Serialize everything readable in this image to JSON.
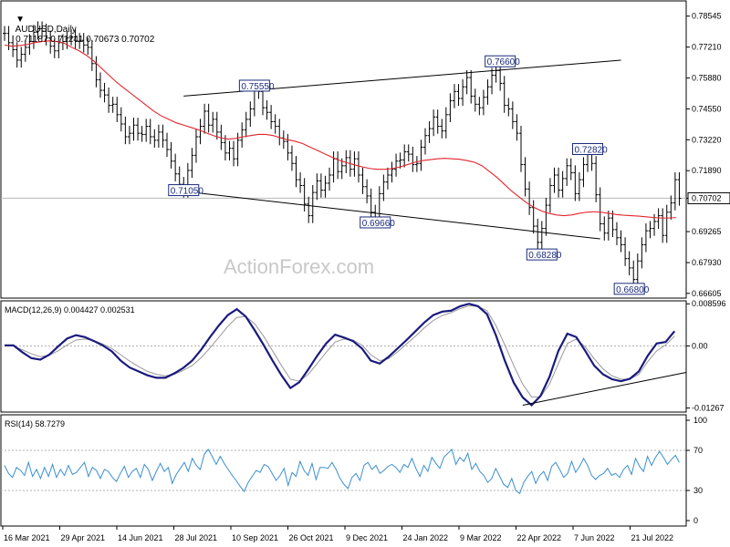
{
  "header": {
    "symbol": "AUDUSD,Daily",
    "ohlc": "0.71187 0.71241 0.70673 0.70702",
    "menu_icon": "triangle-down-icon"
  },
  "watermark": "ActionForex.com",
  "colors": {
    "price": "#000000",
    "ma": "#e3242b",
    "macd": "#1a1a7e",
    "signal": "#999999",
    "rsi": "#3a8fd0",
    "trend": "#000000",
    "label": "#1a2a7a"
  },
  "chart_data": [
    {
      "type": "candlestick",
      "title": "AUDUSD,Daily",
      "y_ticks": [
        "0.78545",
        "0.77210",
        "0.75880",
        "0.74550",
        "0.73220",
        "0.71890",
        "0.70702",
        "0.69265",
        "0.67930",
        "0.66605"
      ],
      "ylim": [
        0.664,
        0.792
      ],
      "current_price": "0.70702",
      "x_labels": [
        "16 Mar 2021",
        "29 Apr 2021",
        "14 Jun 2021",
        "28 Jul 2021",
        "10 Sep 2021",
        "26 Oct 2021",
        "9 Dec 2021",
        "24 Jan 2022",
        "9 Mar 2022",
        "22 Apr 2022",
        "7 Jun 2022",
        "21 Jul 2022"
      ],
      "price_labels": [
        {
          "text": "0.71050",
          "date_index": 43,
          "value": 0.7105
        },
        {
          "text": "0.75550",
          "date_index": 60,
          "value": 0.7555
        },
        {
          "text": "0.69660",
          "date_index": 89,
          "value": 0.6966
        },
        {
          "text": "0.76600",
          "date_index": 119,
          "value": 0.766
        },
        {
          "text": "0.72820",
          "date_index": 140,
          "value": 0.7282
        },
        {
          "text": "0.68280",
          "date_index": 129,
          "value": 0.6828
        },
        {
          "text": "0.66800",
          "date_index": 150,
          "value": 0.668
        }
      ],
      "series": [
        {
          "name": "price",
          "close": [
            0.778,
            0.774,
            0.771,
            0.7665,
            0.769,
            0.772,
            0.7745,
            0.7785,
            0.78,
            0.779,
            0.776,
            0.7725,
            0.7705,
            0.774,
            0.7745,
            0.776,
            0.7765,
            0.7745,
            0.775,
            0.773,
            0.772,
            0.765,
            0.758,
            0.7535,
            0.7515,
            0.747,
            0.7475,
            0.743,
            0.739,
            0.7335,
            0.735,
            0.7385,
            0.735,
            0.7345,
            0.738,
            0.7335,
            0.732,
            0.7355,
            0.732,
            0.728,
            0.723,
            0.7175,
            0.713,
            0.7105,
            0.719,
            0.7255,
            0.7335,
            0.738,
            0.7445,
            0.7385,
            0.741,
            0.7355,
            0.731,
            0.7265,
            0.7285,
            0.724,
            0.732,
            0.7365,
            0.741,
            0.7455,
            0.754,
            0.753,
            0.746,
            0.744,
            0.74,
            0.738,
            0.733,
            0.7315,
            0.7265,
            0.722,
            0.715,
            0.7125,
            0.7045,
            0.6995,
            0.7095,
            0.7145,
            0.7105,
            0.7135,
            0.717,
            0.724,
            0.7185,
            0.721,
            0.7245,
            0.7195,
            0.724,
            0.717,
            0.712,
            0.708,
            0.701,
            0.698,
            0.709,
            0.714,
            0.717,
            0.7195,
            0.723,
            0.7235,
            0.727,
            0.726,
            0.7215,
            0.722,
            0.729,
            0.734,
            0.737,
            0.742,
            0.738,
            0.736,
            0.743,
            0.749,
            0.753,
            0.75,
            0.755,
            0.759,
            0.751,
            0.7475,
            0.746,
            0.7505,
            0.755,
            0.76,
            0.762,
            0.7565,
            0.747,
            0.7455,
            0.74,
            0.735,
            0.7215,
            0.711,
            0.703,
            0.695,
            0.688,
            0.694,
            0.704,
            0.7125,
            0.717,
            0.7105,
            0.7155,
            0.721,
            0.718,
            0.709,
            0.715,
            0.7215,
            0.726,
            0.722,
            0.7085,
            0.696,
            0.692,
            0.6985,
            0.6935,
            0.69,
            0.687,
            0.681,
            0.677,
            0.672,
            0.68,
            0.687,
            0.693,
            0.694,
            0.697,
            0.6995,
            0.691,
            0.701,
            0.705,
            0.715,
            0.707
          ]
        },
        {
          "name": "MA",
          "values": [
            0.773,
            0.7725,
            0.7728,
            0.7732,
            0.774,
            0.7745,
            0.7748,
            0.7745,
            0.7738,
            0.772,
            0.7705,
            0.7685,
            0.766,
            0.763,
            0.76,
            0.757,
            0.7545,
            0.752,
            0.7495,
            0.747,
            0.7445,
            0.7425,
            0.741,
            0.7395,
            0.7385,
            0.7375,
            0.7365,
            0.7352,
            0.734,
            0.733,
            0.7325,
            0.7328,
            0.7335,
            0.734,
            0.7345,
            0.7345,
            0.734,
            0.733,
            0.7322,
            0.7315,
            0.7305,
            0.729,
            0.7275,
            0.726,
            0.7245,
            0.7232,
            0.7222,
            0.7213,
            0.7205,
            0.7198,
            0.7195,
            0.7195,
            0.7198,
            0.7205,
            0.7215,
            0.7225,
            0.7232,
            0.7236,
            0.724,
            0.7242,
            0.724,
            0.7238,
            0.7232,
            0.7225,
            0.721,
            0.7185,
            0.716,
            0.713,
            0.71,
            0.7075,
            0.705,
            0.703,
            0.7015,
            0.7005,
            0.6998,
            0.6995,
            0.6998,
            0.7005,
            0.701,
            0.7012,
            0.701,
            0.7005,
            0.7,
            0.6997,
            0.6995,
            0.6993,
            0.699,
            0.6987,
            0.6985,
            0.6985,
            0.6987
          ]
        }
      ],
      "trendlines": [
        {
          "name": "upper-channel",
          "points": [
            [
              43,
              0.751
            ],
            [
              148,
              0.7665
            ]
          ]
        },
        {
          "name": "lower-channel",
          "points": [
            [
              43,
              0.71
            ],
            [
              143,
              0.6895
            ]
          ]
        }
      ]
    },
    {
      "type": "line",
      "title": "MACD(12,26,9) 0.004427 0.002531",
      "y_ticks": [
        "0.008596",
        "0.00",
        "-0.01267"
      ],
      "ylim": [
        -0.0135,
        0.0092
      ],
      "series": [
        {
          "name": "macd",
          "values": [
            0.0001,
            0.0001,
            -0.0013,
            -0.0025,
            -0.0028,
            -0.0018,
            -0.0001,
            0.0015,
            0.0022,
            0.0018,
            0.001,
            0.0001,
            -0.0011,
            -0.003,
            -0.0044,
            -0.0052,
            -0.006,
            -0.0065,
            -0.0065,
            -0.0056,
            -0.0045,
            -0.003,
            -0.0008,
            0.0018,
            0.0042,
            0.0063,
            0.0075,
            0.006,
            0.0032,
            0.0002,
            -0.003,
            -0.006,
            -0.0086,
            -0.0074,
            -0.0048,
            -0.002,
            0.0005,
            0.0023,
            0.0017,
            0.001,
            -0.0005,
            -0.003,
            -0.0036,
            -0.0022,
            -0.0005,
            0.0012,
            0.003,
            0.0048,
            0.0063,
            0.007,
            0.0072,
            0.0081,
            0.0086,
            0.0081,
            0.0065,
            0.0022,
            -0.003,
            -0.0075,
            -0.0105,
            -0.0121,
            -0.0102,
            -0.0063,
            -0.001,
            0.0025,
            0.0018,
            -0.001,
            -0.004,
            -0.0058,
            -0.0068,
            -0.0072,
            -0.0067,
            -0.0052,
            -0.002,
            0.0005,
            0.0008,
            0.003
          ]
        },
        {
          "name": "signal",
          "values": [
            0.0002,
            0.0,
            -0.0008,
            -0.0016,
            -0.0022,
            -0.0019,
            -0.001,
            0.0002,
            0.0012,
            0.0014,
            0.0011,
            0.0004,
            -0.0005,
            -0.0018,
            -0.0031,
            -0.0042,
            -0.0052,
            -0.0058,
            -0.0061,
            -0.0058,
            -0.005,
            -0.004,
            -0.0024,
            -0.0004,
            0.0018,
            0.004,
            0.0058,
            0.006,
            0.0045,
            0.002,
            -0.001,
            -0.004,
            -0.0068,
            -0.0072,
            -0.0058,
            -0.0036,
            -0.0013,
            0.0008,
            0.0014,
            0.0012,
            0.0002,
            -0.0018,
            -0.003,
            -0.0026,
            -0.0012,
            0.0004,
            0.002,
            0.0037,
            0.0052,
            0.0062,
            0.0068,
            0.0076,
            0.0082,
            0.0081,
            0.0072,
            0.0042,
            0.0002,
            -0.004,
            -0.0078,
            -0.0104,
            -0.0104,
            -0.0078,
            -0.0036,
            0.0005,
            0.0014,
            -0.0002,
            -0.0026,
            -0.0047,
            -0.0061,
            -0.0068,
            -0.0068,
            -0.0058,
            -0.0032,
            -0.001,
            0.0002,
            0.002
          ]
        }
      ],
      "trendline": {
        "points": [
          [
            58,
            -0.0121
          ],
          [
            75,
            -0.0057
          ]
        ]
      }
    },
    {
      "type": "line",
      "title": "RSI(14) 58.7279",
      "y_ticks": [
        "100",
        "70",
        "30",
        "0"
      ],
      "ylim": [
        0,
        100
      ],
      "series": [
        {
          "name": "rsi",
          "values": [
            55,
            47,
            43,
            53,
            50,
            45,
            58,
            44,
            51,
            42,
            53,
            44,
            56,
            43,
            51,
            45,
            55,
            46,
            48,
            53,
            58,
            44,
            53,
            50,
            42,
            51,
            49,
            43,
            39,
            47,
            54,
            43,
            49,
            52,
            43,
            56,
            51,
            40,
            49,
            57,
            49,
            53,
            37,
            46,
            52,
            58,
            49,
            62,
            55,
            51,
            66,
            71,
            64,
            56,
            64,
            57,
            51,
            45,
            40,
            34,
            29,
            38,
            44,
            50,
            48,
            56,
            54,
            47,
            40,
            45,
            52,
            35,
            48,
            44,
            59,
            50,
            45,
            57,
            41,
            53,
            53,
            52,
            58,
            51,
            42,
            36,
            32,
            43,
            47,
            40,
            55,
            58,
            51,
            55,
            47,
            50,
            54,
            56,
            53,
            48,
            56,
            53,
            62,
            52,
            44,
            55,
            49,
            63,
            57,
            52,
            63,
            67,
            71,
            56,
            63,
            59,
            67,
            51,
            57,
            49,
            45,
            38,
            42,
            52,
            44,
            36,
            33,
            42,
            30,
            27,
            38,
            44,
            49,
            37,
            45,
            49,
            40,
            54,
            58,
            51,
            43,
            47,
            59,
            48,
            54,
            62,
            55,
            45,
            41,
            45,
            47,
            52,
            45,
            47,
            43,
            51,
            55,
            46,
            62,
            54,
            49,
            64,
            55,
            63,
            69,
            63,
            56,
            61,
            65,
            58
          ]
        }
      ]
    }
  ]
}
